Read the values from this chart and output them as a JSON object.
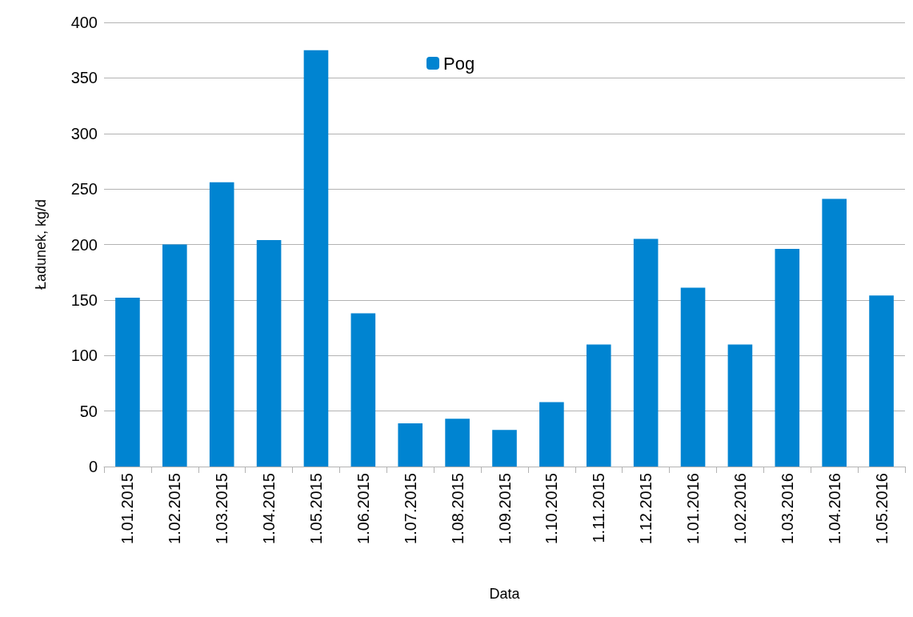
{
  "chart_data": {
    "type": "bar",
    "xlabel": "Data",
    "ylabel": "Ładunek, kg/d",
    "categories": [
      "1.01.2015",
      "1.02.2015",
      "1.03.2015",
      "1.04.2015",
      "1.05.2015",
      "1.06.2015",
      "1.07.2015",
      "1.08.2015",
      "1.09.2015",
      "1.10.2015",
      "1.11.2015",
      "1.12.2015",
      "1.01.2016",
      "1.02.2016",
      "1.03.2016",
      "1.04.2016",
      "1.05.2016"
    ],
    "series": [
      {
        "name": "Pog",
        "color": "#0084d1",
        "values": [
          152,
          200,
          256,
          204,
          375,
          138,
          39,
          43,
          33,
          58,
          110,
          205,
          161,
          110,
          196,
          241,
          154
        ]
      }
    ],
    "ylim": [
      0,
      400
    ],
    "yticks": [
      0,
      50,
      100,
      150,
      200,
      250,
      300,
      350,
      400
    ],
    "grid": "y",
    "legend": "top"
  }
}
